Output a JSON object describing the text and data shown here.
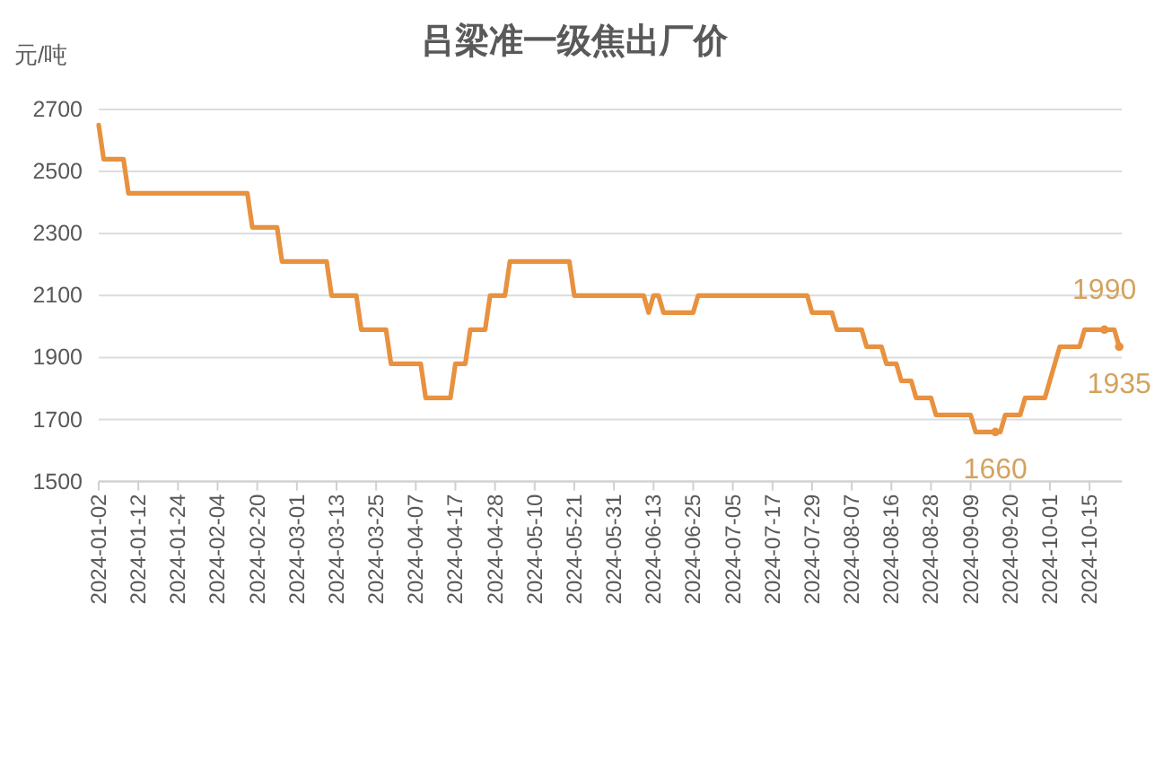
{
  "chart_data": {
    "type": "line",
    "title": "吕梁准一级焦出厂价",
    "ylabel": "元/吨",
    "categories": [
      "2024-01-02",
      null,
      null,
      null,
      null,
      null,
      null,
      null,
      "2024-01-12",
      null,
      null,
      null,
      null,
      null,
      null,
      null,
      "2024-01-24",
      null,
      null,
      null,
      null,
      null,
      null,
      null,
      "2024-02-04",
      null,
      null,
      null,
      null,
      null,
      null,
      null,
      "2024-02-20",
      null,
      null,
      null,
      null,
      null,
      null,
      null,
      "2024-03-01",
      null,
      null,
      null,
      null,
      null,
      null,
      null,
      "2024-03-13",
      null,
      null,
      null,
      null,
      null,
      null,
      null,
      "2024-03-25",
      null,
      null,
      null,
      null,
      null,
      null,
      null,
      "2024-04-07",
      null,
      null,
      null,
      null,
      null,
      null,
      null,
      "2024-04-17",
      null,
      null,
      null,
      null,
      null,
      null,
      null,
      "2024-04-28",
      null,
      null,
      null,
      null,
      null,
      null,
      null,
      "2024-05-10",
      null,
      null,
      null,
      null,
      null,
      null,
      null,
      "2024-05-21",
      null,
      null,
      null,
      null,
      null,
      null,
      null,
      "2024-05-31",
      null,
      null,
      null,
      null,
      null,
      null,
      null,
      "2024-06-13",
      null,
      null,
      null,
      null,
      null,
      null,
      null,
      "2024-06-25",
      null,
      null,
      null,
      null,
      null,
      null,
      null,
      "2024-07-05",
      null,
      null,
      null,
      null,
      null,
      null,
      null,
      "2024-07-17",
      null,
      null,
      null,
      null,
      null,
      null,
      null,
      "2024-07-29",
      null,
      null,
      null,
      null,
      null,
      null,
      null,
      "2024-08-07",
      null,
      null,
      null,
      null,
      null,
      null,
      null,
      "2024-08-16",
      null,
      null,
      null,
      null,
      null,
      null,
      null,
      "2024-08-28",
      null,
      null,
      null,
      null,
      null,
      null,
      null,
      "2024-09-09",
      null,
      null,
      null,
      null,
      null,
      null,
      null,
      "2024-09-20",
      null,
      null,
      null,
      null,
      null,
      null,
      null,
      "2024-10-01",
      null,
      null,
      null,
      null,
      null,
      null,
      null,
      "2024-10-15",
      null,
      null,
      null,
      null,
      null,
      null
    ],
    "values": [
      2650,
      2540,
      2540,
      2540,
      2540,
      2540,
      2430,
      2430,
      2430,
      2430,
      2430,
      2430,
      2430,
      2430,
      2430,
      2430,
      2430,
      2430,
      2430,
      2430,
      2430,
      2430,
      2430,
      2430,
      2430,
      2430,
      2430,
      2430,
      2430,
      2430,
      2430,
      2320,
      2320,
      2320,
      2320,
      2320,
      2320,
      2210,
      2210,
      2210,
      2210,
      2210,
      2210,
      2210,
      2210,
      2210,
      2210,
      2100,
      2100,
      2100,
      2100,
      2100,
      2100,
      1990,
      1990,
      1990,
      1990,
      1990,
      1990,
      1880,
      1880,
      1880,
      1880,
      1880,
      1880,
      1880,
      1770,
      1770,
      1770,
      1770,
      1770,
      1770,
      1880,
      1880,
      1880,
      1990,
      1990,
      1990,
      1990,
      2100,
      2100,
      2100,
      2100,
      2210,
      2210,
      2210,
      2210,
      2210,
      2210,
      2210,
      2210,
      2210,
      2210,
      2210,
      2210,
      2210,
      2100,
      2100,
      2100,
      2100,
      2100,
      2100,
      2100,
      2100,
      2100,
      2100,
      2100,
      2100,
      2100,
      2100,
      2100,
      2045,
      2100,
      2100,
      2045,
      2045,
      2045,
      2045,
      2045,
      2045,
      2045,
      2100,
      2100,
      2100,
      2100,
      2100,
      2100,
      2100,
      2100,
      2100,
      2100,
      2100,
      2100,
      2100,
      2100,
      2100,
      2100,
      2100,
      2100,
      2100,
      2100,
      2100,
      2100,
      2100,
      2045,
      2045,
      2045,
      2045,
      2045,
      1990,
      1990,
      1990,
      1990,
      1990,
      1990,
      1935,
      1935,
      1935,
      1935,
      1880,
      1880,
      1880,
      1825,
      1825,
      1825,
      1770,
      1770,
      1770,
      1770,
      1715,
      1715,
      1715,
      1715,
      1715,
      1715,
      1715,
      1715,
      1660,
      1660,
      1660,
      1660,
      1660,
      1660,
      1715,
      1715,
      1715,
      1715,
      1770,
      1770,
      1770,
      1770,
      1770,
      1825,
      1880,
      1935,
      1935,
      1935,
      1935,
      1935,
      1990,
      1990,
      1990,
      1990,
      1990,
      1990,
      1990,
      1935
    ],
    "value_labels": [
      null,
      null,
      null,
      null,
      null,
      null,
      null,
      null,
      null,
      null,
      null,
      null,
      null,
      null,
      null,
      null,
      null,
      null,
      null,
      null,
      null,
      null,
      null,
      null,
      null,
      null,
      null,
      null,
      null,
      null,
      null,
      null,
      null,
      null,
      null,
      null,
      null,
      null,
      null,
      null,
      null,
      null,
      null,
      null,
      null,
      null,
      null,
      null,
      null,
      null,
      null,
      null,
      null,
      null,
      null,
      null,
      null,
      null,
      null,
      null,
      null,
      null,
      null,
      null,
      null,
      null,
      null,
      null,
      null,
      null,
      null,
      null,
      null,
      null,
      null,
      null,
      null,
      null,
      null,
      null,
      null,
      null,
      null,
      null,
      null,
      null,
      null,
      null,
      null,
      null,
      null,
      null,
      null,
      null,
      null,
      null,
      null,
      null,
      null,
      null,
      null,
      null,
      null,
      null,
      null,
      null,
      null,
      null,
      null,
      null,
      null,
      null,
      null,
      null,
      null,
      null,
      null,
      null,
      null,
      null,
      null,
      null,
      null,
      null,
      null,
      null,
      null,
      null,
      null,
      null,
      null,
      null,
      null,
      null,
      null,
      null,
      null,
      null,
      null,
      null,
      null,
      null,
      null,
      null,
      null,
      null,
      null,
      null,
      null,
      null,
      null,
      null,
      null,
      null,
      null,
      null,
      null,
      null,
      null,
      null,
      null,
      null,
      null,
      null,
      null,
      null,
      null,
      null,
      null,
      null,
      null,
      null,
      null,
      null,
      null,
      null,
      null,
      null,
      null,
      null,
      null,
      "1660",
      null,
      null,
      null,
      null,
      null,
      null,
      null,
      null,
      null,
      null,
      null,
      null,
      null,
      null,
      null,
      null,
      null,
      null,
      null,
      null,
      null,
      "1990",
      null,
      null,
      "1935"
    ],
    "color": "#e8913f",
    "line_style": "solid",
    "ylim": [
      1500,
      2700
    ],
    "yticks": [
      1500,
      1700,
      1900,
      2100,
      2300,
      2500,
      2700
    ],
    "grid": "y"
  }
}
